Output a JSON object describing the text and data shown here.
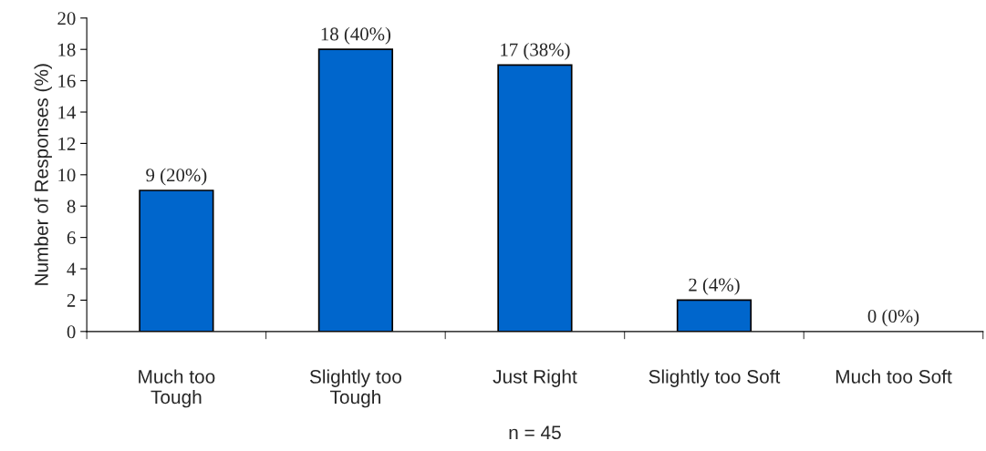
{
  "chart_data": {
    "type": "bar",
    "categories": [
      "Much too\nTough",
      "Slightly too\nTough",
      "Just Right",
      "Slightly too Soft",
      "Much too Soft"
    ],
    "values": [
      9,
      18,
      17,
      2,
      0
    ],
    "value_labels": [
      "9 (20%)",
      "18 (40%)",
      "17 (38%)",
      "2 (4%)",
      "0 (0%)"
    ],
    "color": "#0066cc",
    "ylabel": "Number of Responses (%)",
    "xlabel": "n = 45",
    "ylim": [
      0,
      20
    ],
    "yticks": [
      0,
      2,
      4,
      6,
      8,
      10,
      12,
      14,
      16,
      18,
      20
    ],
    "grid": false,
    "legend": false
  }
}
